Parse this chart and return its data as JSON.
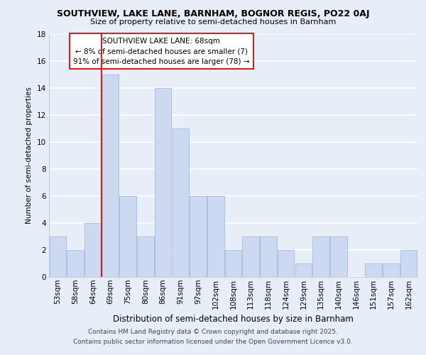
{
  "title1": "SOUTHVIEW, LAKE LANE, BARNHAM, BOGNOR REGIS, PO22 0AJ",
  "title2": "Size of property relative to semi-detached houses in Barnham",
  "xlabel": "Distribution of semi-detached houses by size in Barnham",
  "ylabel": "Number of semi-detached properties",
  "categories": [
    "53sqm",
    "58sqm",
    "64sqm",
    "69sqm",
    "75sqm",
    "80sqm",
    "86sqm",
    "91sqm",
    "97sqm",
    "102sqm",
    "108sqm",
    "113sqm",
    "118sqm",
    "124sqm",
    "129sqm",
    "135sqm",
    "140sqm",
    "146sqm",
    "151sqm",
    "157sqm",
    "162sqm"
  ],
  "values": [
    3,
    2,
    4,
    15,
    6,
    3,
    14,
    11,
    6,
    6,
    2,
    3,
    3,
    2,
    1,
    3,
    3,
    0,
    1,
    1,
    2
  ],
  "bar_color": "#ccd9f0",
  "bar_edge_color": "#aac0e0",
  "ann_line1": "SOUTHVIEW LAKE LANE: 68sqm",
  "ann_line2": "← 8% of semi-detached houses are smaller (7)",
  "ann_line3": "91% of semi-detached houses are larger (78) →",
  "red_line_index": 3,
  "ylim": [
    0,
    18
  ],
  "yticks": [
    0,
    2,
    4,
    6,
    8,
    10,
    12,
    14,
    16,
    18
  ],
  "footer1": "Contains HM Land Registry data © Crown copyright and database right 2025.",
  "footer2": "Contains public sector information licensed under the Open Government Licence v3.0.",
  "bg_color": "#e8eef8",
  "plot_bg_color": "#e8eef8",
  "grid_color": "#ffffff",
  "ann_box_bg": "#ffffff",
  "ann_box_edge": "#cc2222",
  "red_line_color": "#cc2222",
  "title1_fontsize": 9.0,
  "title2_fontsize": 8.0,
  "ylabel_fontsize": 7.5,
  "xlabel_fontsize": 8.5,
  "tick_fontsize": 7.5,
  "ann_fontsize": 7.5,
  "footer_fontsize": 6.5
}
